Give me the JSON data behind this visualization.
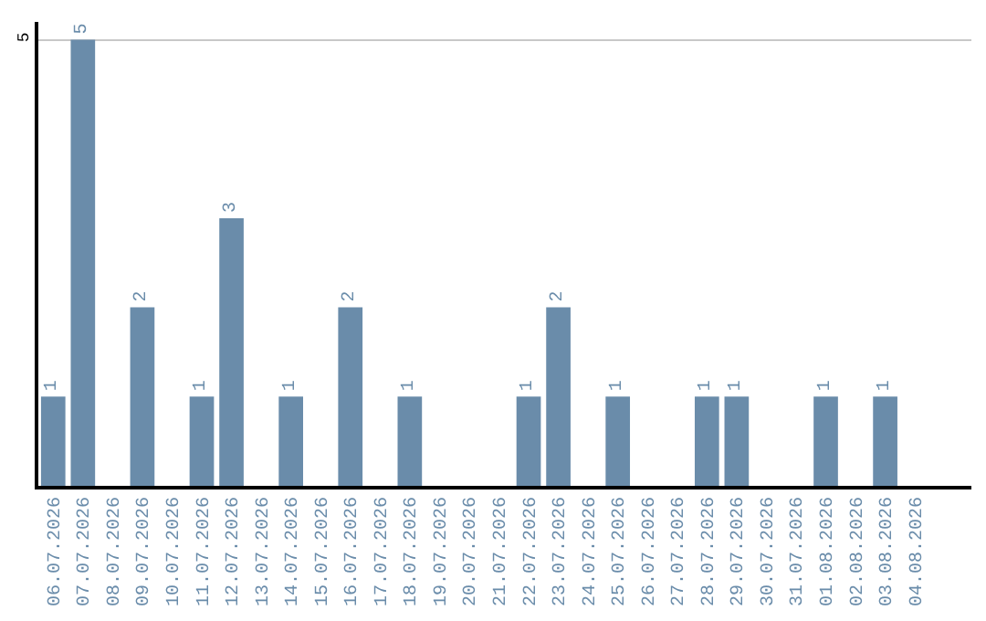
{
  "chart_data": {
    "type": "bar",
    "categories": [
      "06.07.2026",
      "07.07.2026",
      "08.07.2026",
      "09.07.2026",
      "10.07.2026",
      "11.07.2026",
      "12.07.2026",
      "13.07.2026",
      "14.07.2026",
      "15.07.2026",
      "16.07.2026",
      "17.07.2026",
      "18.07.2026",
      "19.07.2026",
      "20.07.2026",
      "21.07.2026",
      "22.07.2026",
      "23.07.2026",
      "24.07.2026",
      "25.07.2026",
      "26.07.2026",
      "27.07.2026",
      "28.07.2026",
      "29.07.2026",
      "30.07.2026",
      "31.07.2026",
      "01.08.2026",
      "02.08.2026",
      "03.08.2026",
      "04.08.2026"
    ],
    "values": [
      1,
      5,
      0,
      2,
      0,
      1,
      3,
      0,
      1,
      0,
      2,
      0,
      1,
      0,
      0,
      0,
      1,
      2,
      0,
      1,
      0,
      0,
      1,
      1,
      0,
      0,
      1,
      0,
      1,
      0
    ],
    "value_labels": [
      "1",
      "5",
      null,
      "2",
      null,
      "1",
      "3",
      null,
      "1",
      null,
      "2",
      null,
      "1",
      null,
      null,
      null,
      "1",
      "2",
      null,
      "1",
      null,
      null,
      "1",
      "1",
      null,
      null,
      "1",
      null,
      "1",
      null
    ],
    "color": "#6a8caa",
    "ylim": [
      0,
      5.2
    ],
    "yticks": [
      5
    ],
    "grid": "y"
  }
}
